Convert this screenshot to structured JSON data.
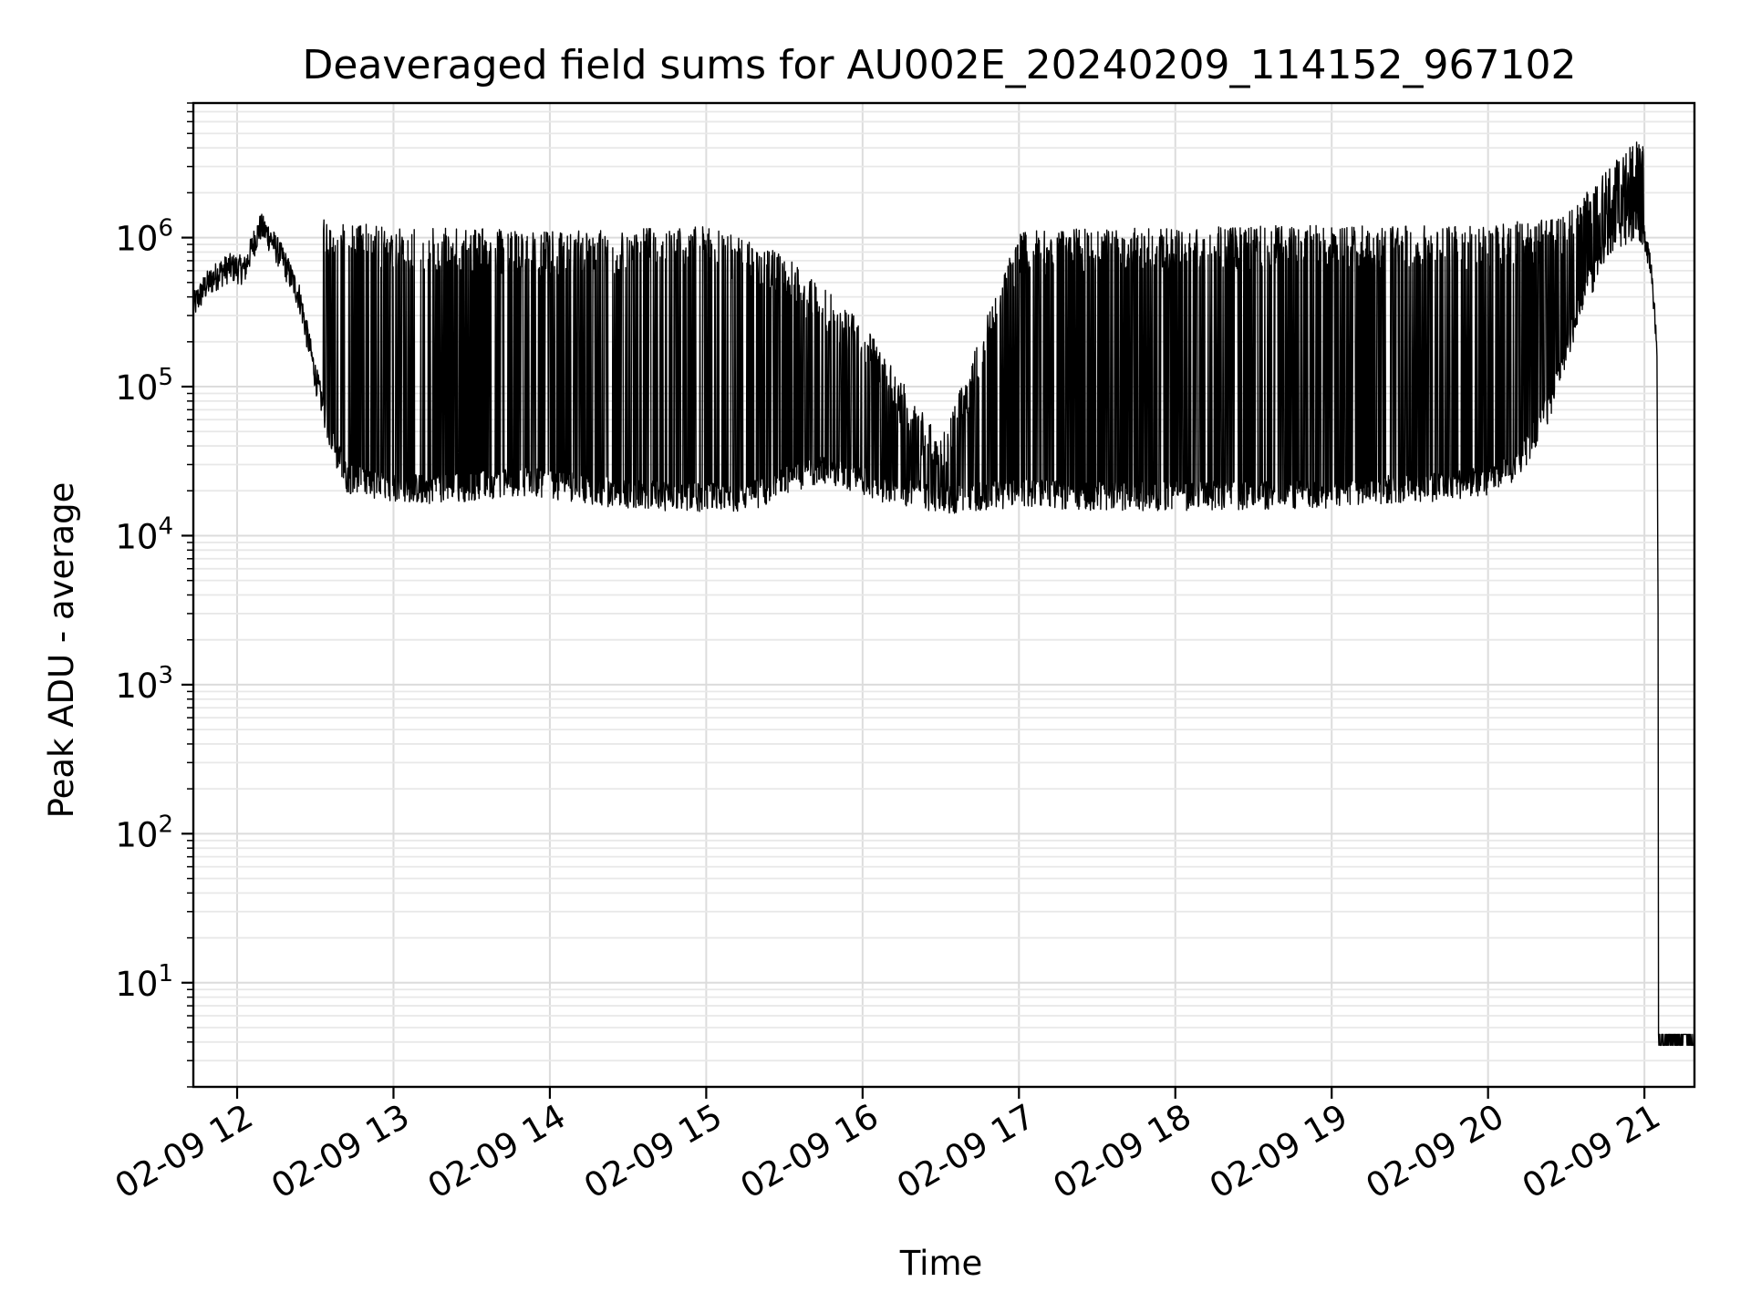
{
  "chart_data": {
    "type": "line",
    "title": "Deaveraged field sums for AU002E_20240209_114152_967102",
    "xlabel": "Time",
    "ylabel": "Peak ADU - average",
    "yscale": "log",
    "ylim": [
      2,
      8000000
    ],
    "xlim_hours": [
      11.72,
      21.32
    ],
    "grid": true,
    "line_color": "#000000",
    "x_ticks": [
      {
        "hour": 12,
        "label": "02-09 12"
      },
      {
        "hour": 13,
        "label": "02-09 13"
      },
      {
        "hour": 14,
        "label": "02-09 14"
      },
      {
        "hour": 15,
        "label": "02-09 15"
      },
      {
        "hour": 16,
        "label": "02-09 16"
      },
      {
        "hour": 17,
        "label": "02-09 17"
      },
      {
        "hour": 18,
        "label": "02-09 18"
      },
      {
        "hour": 19,
        "label": "02-09 19"
      },
      {
        "hour": 20,
        "label": "02-09 20"
      },
      {
        "hour": 21,
        "label": "02-09 21"
      }
    ],
    "y_ticks": [
      {
        "value": 10,
        "base": "10",
        "exp": "1"
      },
      {
        "value": 100,
        "base": "10",
        "exp": "2"
      },
      {
        "value": 1000,
        "base": "10",
        "exp": "3"
      },
      {
        "value": 10000,
        "base": "10",
        "exp": "4"
      },
      {
        "value": 100000,
        "base": "10",
        "exp": "5"
      },
      {
        "value": 1000000,
        "base": "10",
        "exp": "6"
      }
    ],
    "series": [
      {
        "points": [
          [
            11.72,
            350000
          ],
          [
            11.8,
            480000
          ],
          [
            11.88,
            580000
          ],
          [
            11.95,
            640000
          ],
          [
            12.05,
            620000
          ],
          [
            12.1,
            900000
          ],
          [
            12.15,
            1200000
          ],
          [
            12.2,
            1050000
          ],
          [
            12.3,
            700000
          ],
          [
            12.4,
            400000
          ],
          [
            12.5,
            120000
          ],
          [
            12.6,
            45000
          ],
          [
            12.7,
            25000
          ],
          [
            12.9,
            22000
          ],
          [
            13.2,
            21000
          ],
          [
            13.5,
            22000
          ],
          [
            13.8,
            24000
          ],
          [
            14.1,
            22000
          ],
          [
            14.4,
            20000
          ],
          [
            14.7,
            19000
          ],
          [
            15.0,
            18500
          ],
          [
            15.3,
            19000
          ],
          [
            15.5,
            24000
          ],
          [
            15.7,
            28000
          ],
          [
            15.9,
            26000
          ],
          [
            16.1,
            22000
          ],
          [
            16.4,
            19000
          ],
          [
            16.6,
            18000
          ],
          [
            16.8,
            19000
          ],
          [
            17.0,
            20000
          ],
          [
            17.3,
            19000
          ],
          [
            17.6,
            19000
          ],
          [
            17.9,
            19000
          ],
          [
            18.2,
            19000
          ],
          [
            18.5,
            19000
          ],
          [
            18.8,
            19500
          ],
          [
            19.1,
            20000
          ],
          [
            19.4,
            21000
          ],
          [
            19.7,
            22000
          ],
          [
            20.0,
            24000
          ],
          [
            20.2,
            30000
          ],
          [
            20.4,
            80000
          ],
          [
            20.6,
            400000
          ],
          [
            20.8,
            1000000
          ],
          [
            20.95,
            1300000
          ],
          [
            21.0,
            1100000
          ],
          [
            21.05,
            600000
          ],
          [
            21.08,
            150000
          ],
          [
            21.1,
            3.8
          ],
          [
            21.32,
            3.8
          ]
        ],
        "upper_envelope": [
          [
            12.55,
            1200000
          ],
          [
            13.0,
            1100000
          ],
          [
            13.5,
            1050000
          ],
          [
            14.0,
            1000000
          ],
          [
            14.5,
            1050000
          ],
          [
            15.0,
            1100000
          ],
          [
            15.5,
            700000
          ],
          [
            16.0,
            250000
          ],
          [
            16.5,
            40000
          ],
          [
            17.0,
            1000000
          ],
          [
            17.5,
            1050000
          ],
          [
            18.0,
            1050000
          ],
          [
            18.5,
            1100000
          ],
          [
            19.0,
            1100000
          ],
          [
            19.5,
            1100000
          ],
          [
            20.0,
            1100000
          ],
          [
            20.5,
            1300000
          ],
          [
            20.95,
            4200000
          ],
          [
            21.0,
            3600000
          ]
        ]
      }
    ]
  }
}
